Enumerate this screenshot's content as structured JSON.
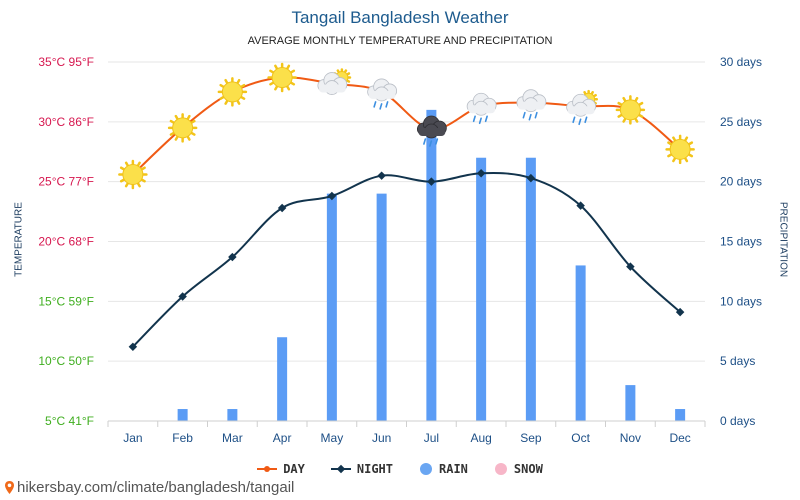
{
  "title": "Tangail Bangladesh Weather",
  "subtitle": "AVERAGE MONTHLY TEMPERATURE AND PRECIPITATION",
  "source": "hikersbay.com/climate/bangladesh/tangail",
  "colors": {
    "day": "#f05a14",
    "night": "#12344d",
    "rain": "#5b9cf5",
    "snow": "#f7b6c8",
    "tick_warm": "#d6174f",
    "tick_cool": "#3fae1f",
    "tick_right": "#1d4f86"
  },
  "legend": [
    {
      "key": "day",
      "label": "DAY",
      "marker": "line-dot"
    },
    {
      "key": "night",
      "label": "NIGHT",
      "marker": "line-diamond"
    },
    {
      "key": "rain",
      "label": "RAIN",
      "marker": "circle"
    },
    {
      "key": "snow",
      "label": "SNOW",
      "marker": "circle"
    }
  ],
  "chart_data": {
    "type": "line",
    "title": "Tangail Bangladesh Weather",
    "subtitle": "AVERAGE MONTHLY TEMPERATURE AND PRECIPITATION",
    "categories": [
      "Jan",
      "Feb",
      "Mar",
      "Apr",
      "May",
      "Jun",
      "Jul",
      "Aug",
      "Sep",
      "Oct",
      "Nov",
      "Dec"
    ],
    "y_left": {
      "label": "TEMPERATURE",
      "range": [
        5,
        35
      ],
      "ticks": [
        {
          "value": 35,
          "label": "35°C 95°F"
        },
        {
          "value": 30,
          "label": "30°C 86°F"
        },
        {
          "value": 25,
          "label": "25°C 77°F"
        },
        {
          "value": 20,
          "label": "20°C 68°F"
        },
        {
          "value": 15,
          "label": "15°C 59°F"
        },
        {
          "value": 10,
          "label": "10°C 50°F"
        },
        {
          "value": 5,
          "label": "5°C 41°F"
        }
      ]
    },
    "y_right": {
      "label": "PRECIPITATION",
      "range": [
        0,
        30
      ],
      "ticks": [
        {
          "value": 30,
          "label": "30 days"
        },
        {
          "value": 25,
          "label": "25 days"
        },
        {
          "value": 20,
          "label": "20 days"
        },
        {
          "value": 15,
          "label": "15 days"
        },
        {
          "value": 10,
          "label": "10 days"
        },
        {
          "value": 5,
          "label": "5 days"
        },
        {
          "value": 0,
          "label": "0 days"
        }
      ]
    },
    "series": [
      {
        "name": "DAY",
        "type": "line",
        "axis": "left",
        "values": [
          25.6,
          29.5,
          32.5,
          33.7,
          33.2,
          32.5,
          29.4,
          31.3,
          31.6,
          31.3,
          31.0,
          27.7
        ]
      },
      {
        "name": "NIGHT",
        "type": "line",
        "axis": "left",
        "values": [
          11.2,
          15.4,
          18.7,
          22.8,
          23.8,
          25.5,
          25.0,
          25.7,
          25.3,
          23.0,
          17.9,
          14.1
        ]
      },
      {
        "name": "RAIN",
        "type": "bar",
        "axis": "right",
        "values": [
          0,
          1,
          1,
          7,
          19,
          19,
          26,
          22,
          22,
          13,
          3,
          1
        ]
      },
      {
        "name": "SNOW",
        "type": "bar",
        "axis": "right",
        "values": [
          0,
          0,
          0,
          0,
          0,
          0,
          0,
          0,
          0,
          0,
          0,
          0
        ]
      }
    ],
    "icons": [
      "sun-icon",
      "sun-icon",
      "sun-icon",
      "sun-icon",
      "sun-cloud-icon",
      "rain-cloud-icon",
      "storm-cloud-icon",
      "rain-cloud-icon",
      "rain-cloud-icon",
      "sun-rain-cloud-icon",
      "sun-icon",
      "sun-icon"
    ],
    "grid": true,
    "legend_position": "bottom"
  }
}
